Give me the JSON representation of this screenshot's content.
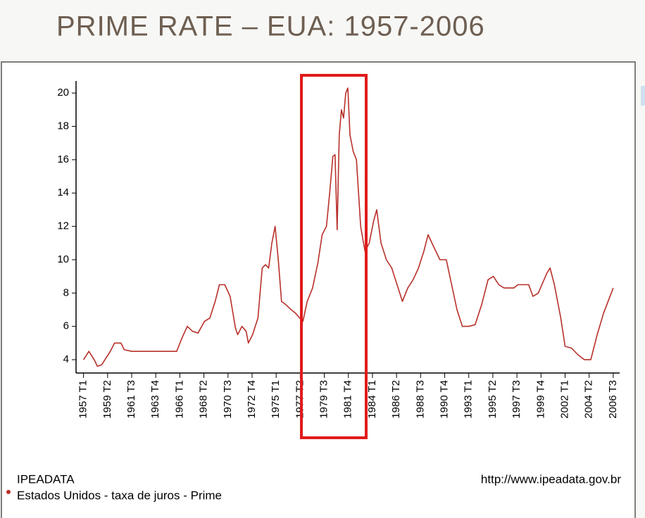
{
  "chart_data": {
    "type": "line",
    "title": "PRIME RATE – EUA: 1957-2006",
    "source": "IPEADATA",
    "url": "http://www.ipeadata.gov.br",
    "xlim": [
      1956.3,
      2007.1
    ],
    "ylim": [
      3.2,
      20.6
    ],
    "yticks": [
      4,
      6,
      8,
      10,
      12,
      14,
      16,
      18,
      20
    ],
    "xticks": [
      {
        "value": 1957.0,
        "label": "1957 T1"
      },
      {
        "value": 1959.25,
        "label": "1959 T2"
      },
      {
        "value": 1961.5,
        "label": "1961 T3"
      },
      {
        "value": 1963.75,
        "label": "1963 T4"
      },
      {
        "value": 1966.0,
        "label": "1966 T1"
      },
      {
        "value": 1968.25,
        "label": "1968 T2"
      },
      {
        "value": 1970.5,
        "label": "1970 T3"
      },
      {
        "value": 1972.75,
        "label": "1972 T4"
      },
      {
        "value": 1975.0,
        "label": "1975 T1"
      },
      {
        "value": 1977.25,
        "label": "1977 T2"
      },
      {
        "value": 1979.5,
        "label": "1979 T3"
      },
      {
        "value": 1981.75,
        "label": "1981 T4"
      },
      {
        "value": 1984.0,
        "label": "1984 T1"
      },
      {
        "value": 1986.25,
        "label": "1986 T2"
      },
      {
        "value": 1988.5,
        "label": "1988 T3"
      },
      {
        "value": 1990.75,
        "label": "1990 T4"
      },
      {
        "value": 1993.0,
        "label": "1993 T1"
      },
      {
        "value": 1995.25,
        "label": "1995 T2"
      },
      {
        "value": 1997.5,
        "label": "1997 T3"
      },
      {
        "value": 1999.75,
        "label": "1999 T4"
      },
      {
        "value": 2002.0,
        "label": "2002 T1"
      },
      {
        "value": 2004.25,
        "label": "2004 T2"
      },
      {
        "value": 2006.5,
        "label": "2006 T3"
      }
    ],
    "grid": false,
    "x": [
      1957.0,
      1957.5,
      1958.0,
      1958.3,
      1958.7,
      1959.0,
      1959.5,
      1959.9,
      1960.5,
      1960.8,
      1961.5,
      1965.7,
      1966.2,
      1966.7,
      1967.2,
      1967.7,
      1968.3,
      1968.8,
      1969.3,
      1969.7,
      1970.2,
      1970.7,
      1971.2,
      1971.4,
      1971.8,
      1972.2,
      1972.4,
      1972.8,
      1973.3,
      1973.7,
      1974.0,
      1974.3,
      1974.6,
      1974.9,
      1975.2,
      1975.5,
      1975.9,
      1976.4,
      1976.8,
      1977.2,
      1977.5,
      1977.9,
      1978.4,
      1978.9,
      1979.3,
      1979.7,
      1980.0,
      1980.3,
      1980.5,
      1980.7,
      1980.9,
      1981.1,
      1981.3,
      1981.5,
      1981.7,
      1981.9,
      1982.2,
      1982.5,
      1982.9,
      1983.3,
      1983.7,
      1984.1,
      1984.4,
      1984.8,
      1985.3,
      1985.8,
      1986.3,
      1986.8,
      1987.3,
      1987.8,
      1988.3,
      1988.8,
      1989.2,
      1989.7,
      1990.3,
      1990.9,
      1991.4,
      1991.9,
      1992.4,
      1993.0,
      1993.6,
      1994.2,
      1994.8,
      1995.3,
      1995.8,
      1996.3,
      1997.2,
      1997.6,
      1998.6,
      1999.0,
      1999.5,
      2000.3,
      2000.6,
      2001.0,
      2001.6,
      2002.0,
      2002.6,
      2003.2,
      2003.8,
      2004.4,
      2005.0,
      2005.6,
      2006.5
    ],
    "series": [
      {
        "name": "Estados Unidos - taxa de juros - Prime",
        "color": "#b8302a",
        "values": [
          4.0,
          4.5,
          4.0,
          3.6,
          3.7,
          4.0,
          4.5,
          5.0,
          5.0,
          4.6,
          4.5,
          4.5,
          5.3,
          6.0,
          5.7,
          5.6,
          6.3,
          6.5,
          7.5,
          8.5,
          8.5,
          7.8,
          5.9,
          5.5,
          6.0,
          5.7,
          5.0,
          5.5,
          6.5,
          9.5,
          9.7,
          9.5,
          11.0,
          12.0,
          10.0,
          7.5,
          7.3,
          7.0,
          6.8,
          6.5,
          6.3,
          7.5,
          8.3,
          9.8,
          11.5,
          12.0,
          14.0,
          16.2,
          16.3,
          11.8,
          17.5,
          19.0,
          18.5,
          20.0,
          20.3,
          17.5,
          16.5,
          16.0,
          12.0,
          10.5,
          11.0,
          12.3,
          13.0,
          11.0,
          10.0,
          9.5,
          8.5,
          7.5,
          8.3,
          8.8,
          9.5,
          10.5,
          11.5,
          10.8,
          10.0,
          10.0,
          8.5,
          7.0,
          6.0,
          6.0,
          6.1,
          7.3,
          8.8,
          9.0,
          8.5,
          8.3,
          8.3,
          8.5,
          8.5,
          7.8,
          8.0,
          9.2,
          9.5,
          8.5,
          6.5,
          4.8,
          4.7,
          4.3,
          4.0,
          4.0,
          5.5,
          6.8,
          8.3
        ]
      }
    ]
  }
}
